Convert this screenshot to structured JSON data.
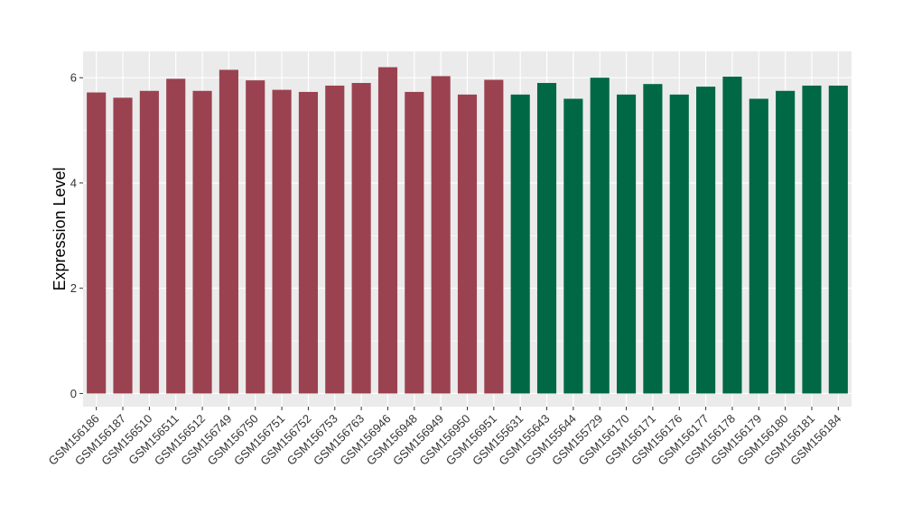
{
  "chart_data": {
    "type": "bar",
    "ylabel": "Expression Level",
    "xlabel": "",
    "ylim": [
      -0.25,
      6.5
    ],
    "yticks": [
      0,
      2,
      4,
      6
    ],
    "grid": true,
    "legend": "none",
    "colors": {
      "group1": "#9B4250",
      "group2": "#006845",
      "panel_bg": "#EBEBEB",
      "grid": "#FFFFFF"
    },
    "categories": [
      "GSM156186",
      "GSM156187",
      "GSM156510",
      "GSM156511",
      "GSM156512",
      "GSM156749",
      "GSM156750",
      "GSM156751",
      "GSM156752",
      "GSM156753",
      "GSM156763",
      "GSM156946",
      "GSM156948",
      "GSM156949",
      "GSM156950",
      "GSM156951",
      "GSM155631",
      "GSM155643",
      "GSM155644",
      "GSM155729",
      "GSM156170",
      "GSM156171",
      "GSM156176",
      "GSM156177",
      "GSM156178",
      "GSM156179",
      "GSM156180",
      "GSM156181",
      "GSM156184"
    ],
    "values": [
      5.72,
      5.62,
      5.75,
      5.98,
      5.75,
      6.15,
      5.95,
      5.77,
      5.73,
      5.85,
      5.9,
      6.2,
      5.73,
      6.03,
      5.68,
      5.96,
      5.68,
      5.9,
      5.6,
      6.0,
      5.68,
      5.88,
      5.68,
      5.83,
      6.02,
      5.6,
      5.75,
      5.85,
      5.85
    ],
    "groups": [
      "group1",
      "group1",
      "group1",
      "group1",
      "group1",
      "group1",
      "group1",
      "group1",
      "group1",
      "group1",
      "group1",
      "group1",
      "group1",
      "group1",
      "group1",
      "group1",
      "group2",
      "group2",
      "group2",
      "group2",
      "group2",
      "group2",
      "group2",
      "group2",
      "group2",
      "group2",
      "group2",
      "group2",
      "group2"
    ]
  }
}
